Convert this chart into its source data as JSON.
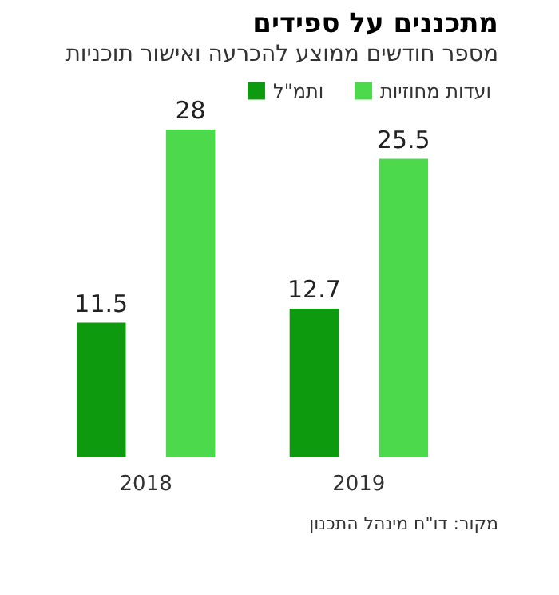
{
  "chart_data": {
    "type": "bar",
    "title": "מתכננים על ספידים",
    "subtitle": "מספר חודשים ממוצע להכרעה ואישור תוכניות",
    "categories": [
      "2018",
      "2019"
    ],
    "series": [
      {
        "name": "ותמ\"ל",
        "color": "#0e9a0e",
        "values": [
          11.5,
          12.7
        ]
      },
      {
        "name": "ועדות מחוזיות",
        "color": "#4cd94c",
        "values": [
          28,
          25.5
        ]
      }
    ],
    "data_labels": true,
    "legend": "top right",
    "grid": false,
    "annotations": [
      "מקור: דו\"ח מינהל התכנון"
    ]
  }
}
